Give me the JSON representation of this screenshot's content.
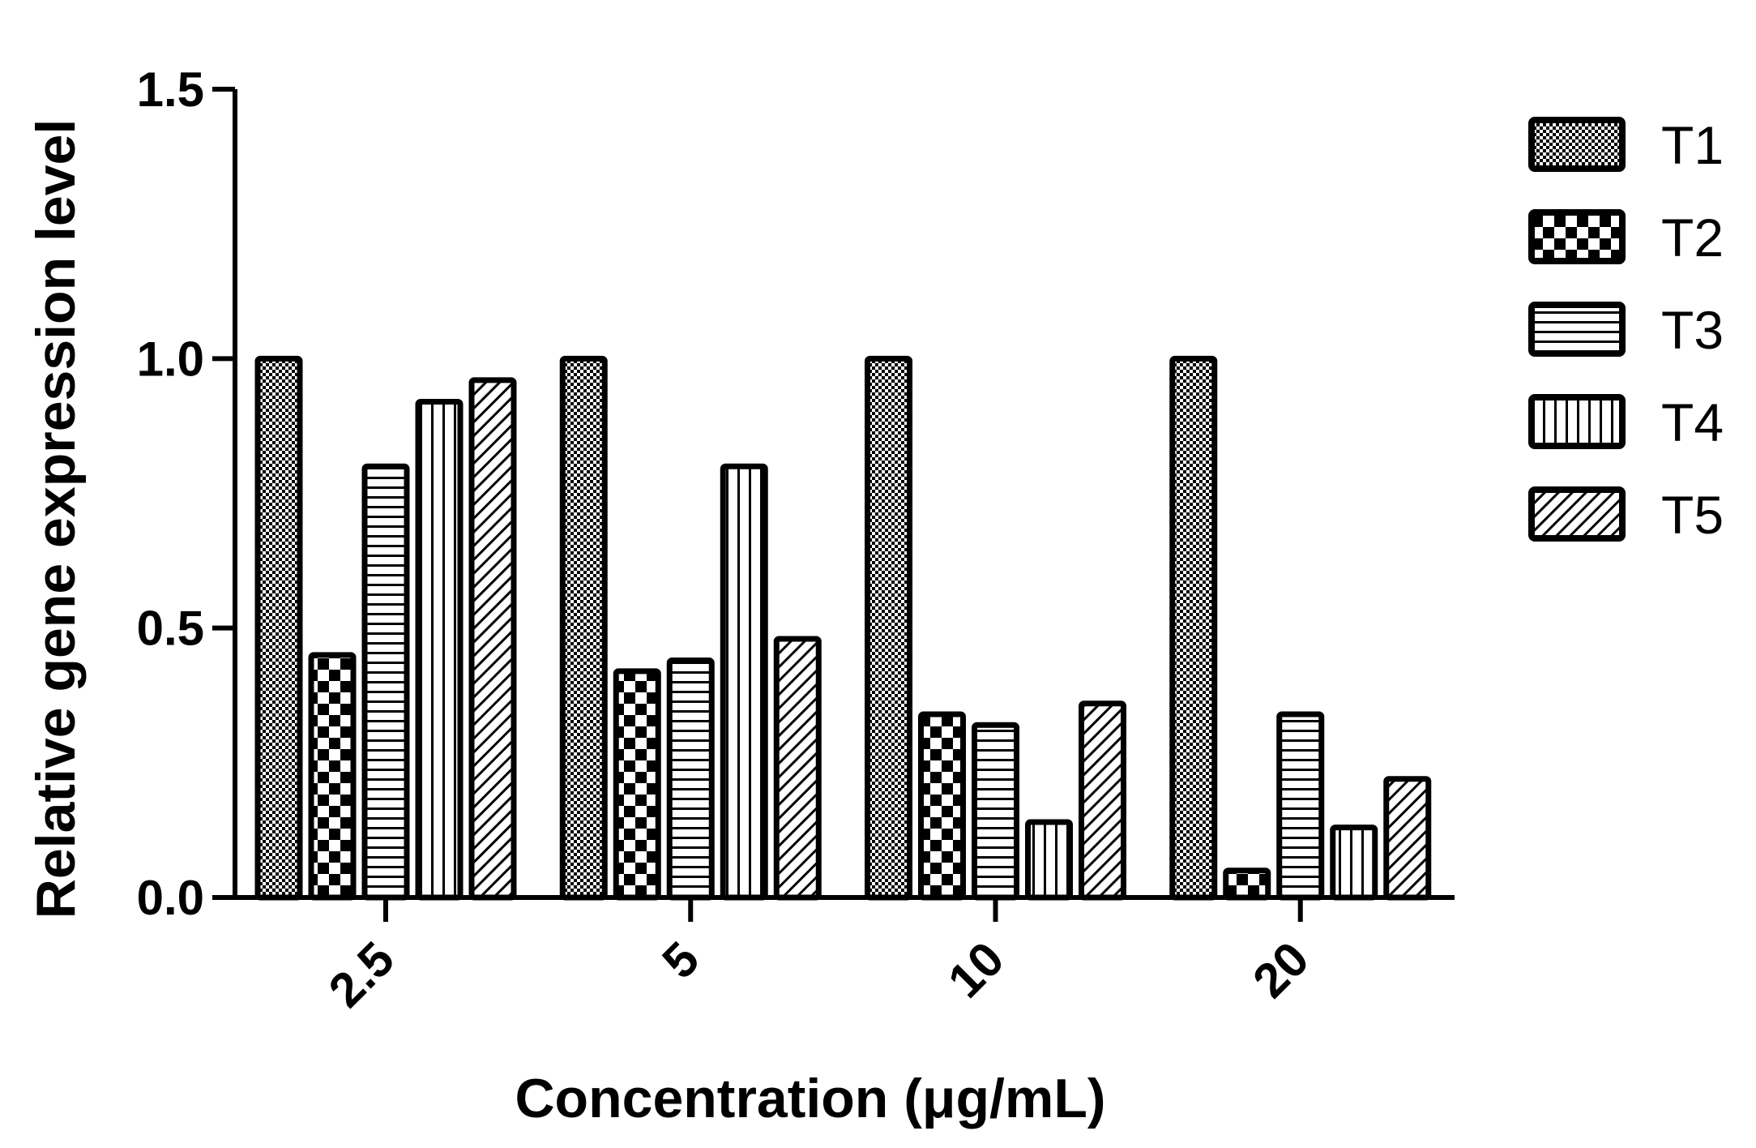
{
  "chart_data": {
    "type": "bar",
    "title": "",
    "xlabel": "Concentration (μg/mL)",
    "ylabel": "Relative gene expression level",
    "categories": [
      "2.5",
      "5",
      "10",
      "20"
    ],
    "ylim": [
      0,
      1.5
    ],
    "yticks": [
      0,
      0.5,
      1.0,
      1.5
    ],
    "ytick_labels": [
      "0.0",
      "0.5",
      "1.0",
      "1.5"
    ],
    "grid": false,
    "legend_position": "right",
    "series": [
      {
        "name": "T1",
        "pattern": "checker",
        "values": [
          1.0,
          1.0,
          1.0,
          1.0
        ]
      },
      {
        "name": "T2",
        "pattern": "big-checker",
        "values": [
          0.45,
          0.42,
          0.34,
          0.05
        ]
      },
      {
        "name": "T3",
        "pattern": "horizontal",
        "values": [
          0.8,
          0.44,
          0.32,
          0.34
        ]
      },
      {
        "name": "T4",
        "pattern": "vertical",
        "values": [
          0.92,
          0.8,
          0.14,
          0.13
        ]
      },
      {
        "name": "T5",
        "pattern": "diagonal",
        "values": [
          0.96,
          0.48,
          0.36,
          0.22
        ]
      }
    ],
    "colors": {
      "stroke": "#000000",
      "fill": "#ffffff"
    }
  }
}
